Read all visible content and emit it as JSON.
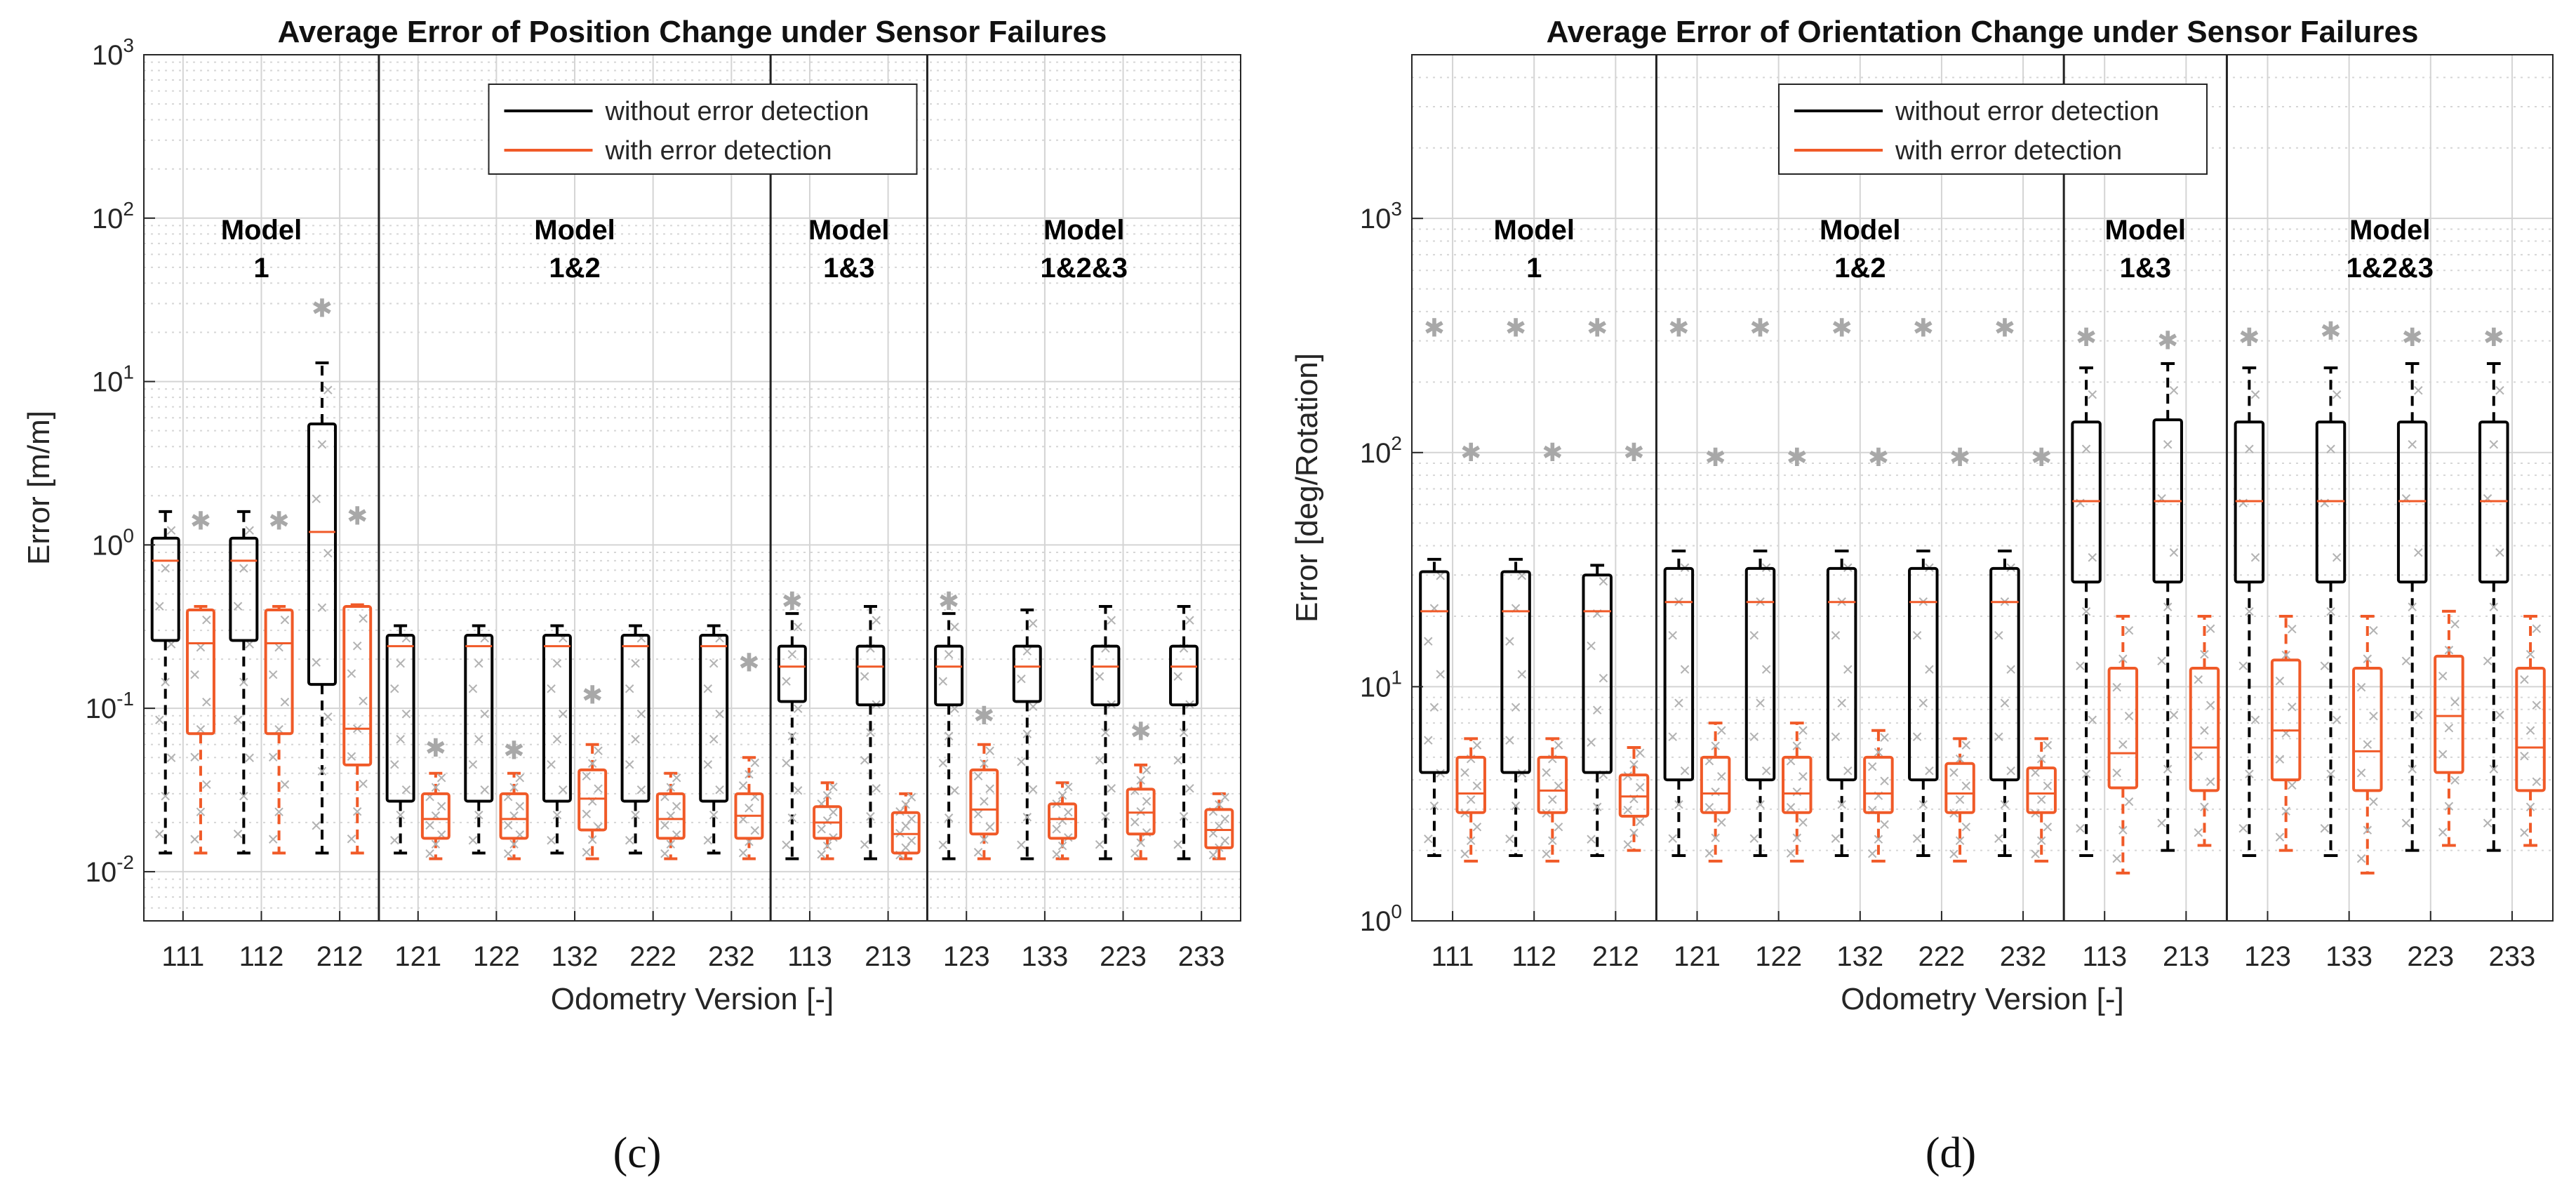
{
  "captions": [
    "(c)",
    "(d)"
  ],
  "chart_data": [
    {
      "type": "box",
      "title": "Average Error of Position Change under Sensor Failures",
      "xlabel": "Odometry Version [-]",
      "ylabel": "Error [m/m]",
      "yscale": "log",
      "ylim": [
        0.005,
        1000
      ],
      "yticks": [
        {
          "value": 0.01,
          "base": "10",
          "exp": "-2"
        },
        {
          "value": 0.1,
          "base": "10",
          "exp": "-1"
        },
        {
          "value": 1,
          "base": "10",
          "exp": "0"
        },
        {
          "value": 10,
          "base": "10",
          "exp": "1"
        },
        {
          "value": 100,
          "base": "10",
          "exp": "2"
        },
        {
          "value": 1000,
          "base": "10",
          "exp": "3"
        }
      ],
      "grid": true,
      "legend": {
        "position": "top-center",
        "entries": [
          {
            "label": "without error detection",
            "color": "#000000"
          },
          {
            "label": "with error detection",
            "color": "#f05a28"
          }
        ]
      },
      "groups": [
        {
          "line1": "Model",
          "line2": "1",
          "span": [
            0,
            2
          ]
        },
        {
          "line1": "Model",
          "line2": "1&2",
          "span": [
            3,
            7
          ]
        },
        {
          "line1": "Model",
          "line2": "1&3",
          "span": [
            8,
            9
          ]
        },
        {
          "line1": "Model",
          "line2": "1&2&3",
          "span": [
            10,
            13
          ]
        }
      ],
      "categories": [
        "111",
        "112",
        "212",
        "121",
        "122",
        "132",
        "222",
        "232",
        "113",
        "213",
        "123",
        "133",
        "223",
        "233"
      ],
      "series": [
        {
          "name": "without error detection",
          "color": "#000000",
          "boxes": [
            {
              "wlo": 0.013,
              "q1": 0.26,
              "med": 0.8,
              "q3": 1.1,
              "whi": 1.6,
              "outliers": []
            },
            {
              "wlo": 0.013,
              "q1": 0.26,
              "med": 0.8,
              "q3": 1.1,
              "whi": 1.6,
              "outliers": []
            },
            {
              "wlo": 0.013,
              "q1": 0.14,
              "med": 1.2,
              "q3": 5.5,
              "whi": 13,
              "outliers": [
                28
              ]
            },
            {
              "wlo": 0.013,
              "q1": 0.027,
              "med": 0.24,
              "q3": 0.28,
              "whi": 0.32,
              "outliers": []
            },
            {
              "wlo": 0.013,
              "q1": 0.027,
              "med": 0.24,
              "q3": 0.28,
              "whi": 0.32,
              "outliers": []
            },
            {
              "wlo": 0.013,
              "q1": 0.027,
              "med": 0.24,
              "q3": 0.28,
              "whi": 0.32,
              "outliers": []
            },
            {
              "wlo": 0.013,
              "q1": 0.027,
              "med": 0.24,
              "q3": 0.28,
              "whi": 0.32,
              "outliers": []
            },
            {
              "wlo": 0.013,
              "q1": 0.027,
              "med": 0.24,
              "q3": 0.28,
              "whi": 0.32,
              "outliers": []
            },
            {
              "wlo": 0.012,
              "q1": 0.11,
              "med": 0.18,
              "q3": 0.24,
              "whi": 0.38,
              "outliers": [
                0.45
              ]
            },
            {
              "wlo": 0.012,
              "q1": 0.105,
              "med": 0.18,
              "q3": 0.24,
              "whi": 0.42,
              "outliers": []
            },
            {
              "wlo": 0.012,
              "q1": 0.105,
              "med": 0.18,
              "q3": 0.24,
              "whi": 0.38,
              "outliers": [
                0.45
              ]
            },
            {
              "wlo": 0.012,
              "q1": 0.11,
              "med": 0.18,
              "q3": 0.24,
              "whi": 0.4,
              "outliers": []
            },
            {
              "wlo": 0.012,
              "q1": 0.105,
              "med": 0.18,
              "q3": 0.24,
              "whi": 0.42,
              "outliers": []
            },
            {
              "wlo": 0.012,
              "q1": 0.105,
              "med": 0.18,
              "q3": 0.24,
              "whi": 0.42,
              "outliers": []
            }
          ]
        },
        {
          "name": "with error detection",
          "color": "#f05a28",
          "boxes": [
            {
              "wlo": 0.013,
              "q1": 0.07,
              "med": 0.25,
              "q3": 0.4,
              "whi": 0.42,
              "outliers": [
                1.4
              ]
            },
            {
              "wlo": 0.013,
              "q1": 0.07,
              "med": 0.25,
              "q3": 0.4,
              "whi": 0.42,
              "outliers": [
                1.4
              ]
            },
            {
              "wlo": 0.013,
              "q1": 0.045,
              "med": 0.075,
              "q3": 0.42,
              "whi": 0.43,
              "outliers": [
                1.5
              ]
            },
            {
              "wlo": 0.012,
              "q1": 0.016,
              "med": 0.021,
              "q3": 0.03,
              "whi": 0.04,
              "outliers": [
                0.057
              ]
            },
            {
              "wlo": 0.012,
              "q1": 0.016,
              "med": 0.021,
              "q3": 0.03,
              "whi": 0.04,
              "outliers": [
                0.055
              ]
            },
            {
              "wlo": 0.012,
              "q1": 0.018,
              "med": 0.028,
              "q3": 0.042,
              "whi": 0.06,
              "outliers": [
                0.12
              ]
            },
            {
              "wlo": 0.012,
              "q1": 0.016,
              "med": 0.021,
              "q3": 0.03,
              "whi": 0.04,
              "outliers": []
            },
            {
              "wlo": 0.012,
              "q1": 0.016,
              "med": 0.022,
              "q3": 0.03,
              "whi": 0.05,
              "outliers": [
                0.19
              ]
            },
            {
              "wlo": 0.012,
              "q1": 0.016,
              "med": 0.02,
              "q3": 0.025,
              "whi": 0.035,
              "outliers": []
            },
            {
              "wlo": 0.012,
              "q1": 0.013,
              "med": 0.017,
              "q3": 0.023,
              "whi": 0.03,
              "outliers": []
            },
            {
              "wlo": 0.012,
              "q1": 0.017,
              "med": 0.024,
              "q3": 0.042,
              "whi": 0.06,
              "outliers": [
                0.09
              ]
            },
            {
              "wlo": 0.012,
              "q1": 0.016,
              "med": 0.021,
              "q3": 0.026,
              "whi": 0.035,
              "outliers": []
            },
            {
              "wlo": 0.012,
              "q1": 0.017,
              "med": 0.023,
              "q3": 0.032,
              "whi": 0.045,
              "outliers": [
                0.072
              ]
            },
            {
              "wlo": 0.012,
              "q1": 0.014,
              "med": 0.018,
              "q3": 0.024,
              "whi": 0.03,
              "outliers": []
            }
          ]
        }
      ]
    },
    {
      "type": "box",
      "title": "Average Error of Orientation Change under Sensor Failures",
      "xlabel": "Odometry Version [-]",
      "ylabel": "Error [deg/Rotation]",
      "yscale": "log",
      "ylim": [
        1,
        5000
      ],
      "yticks": [
        {
          "value": 1,
          "base": "10",
          "exp": "0"
        },
        {
          "value": 10,
          "base": "10",
          "exp": "1"
        },
        {
          "value": 100,
          "base": "10",
          "exp": "2"
        },
        {
          "value": 1000,
          "base": "10",
          "exp": "3"
        }
      ],
      "grid": true,
      "legend": {
        "position": "top-center",
        "entries": [
          {
            "label": "without error detection",
            "color": "#000000"
          },
          {
            "label": "with error detection",
            "color": "#f05a28"
          }
        ]
      },
      "groups": [
        {
          "line1": "Model",
          "line2": "1",
          "span": [
            0,
            2
          ]
        },
        {
          "line1": "Model",
          "line2": "1&2",
          "span": [
            3,
            7
          ]
        },
        {
          "line1": "Model",
          "line2": "1&3",
          "span": [
            8,
            9
          ]
        },
        {
          "line1": "Model",
          "line2": "1&2&3",
          "span": [
            10,
            13
          ]
        }
      ],
      "categories": [
        "111",
        "112",
        "212",
        "121",
        "122",
        "132",
        "222",
        "232",
        "113",
        "213",
        "123",
        "133",
        "223",
        "233"
      ],
      "series": [
        {
          "name": "without error detection",
          "color": "#000000",
          "boxes": [
            {
              "wlo": 1.9,
              "q1": 4.3,
              "med": 21,
              "q3": 31,
              "whi": 35,
              "outliers": [
                340
              ]
            },
            {
              "wlo": 1.9,
              "q1": 4.3,
              "med": 21,
              "q3": 31,
              "whi": 35,
              "outliers": [
                340
              ]
            },
            {
              "wlo": 1.9,
              "q1": 4.3,
              "med": 21,
              "q3": 30,
              "whi": 33,
              "outliers": [
                340
              ]
            },
            {
              "wlo": 1.9,
              "q1": 4.0,
              "med": 23,
              "q3": 32,
              "whi": 38,
              "outliers": [
                340
              ]
            },
            {
              "wlo": 1.9,
              "q1": 4.0,
              "med": 23,
              "q3": 32,
              "whi": 38,
              "outliers": [
                340
              ]
            },
            {
              "wlo": 1.9,
              "q1": 4.0,
              "med": 23,
              "q3": 32,
              "whi": 38,
              "outliers": [
                340
              ]
            },
            {
              "wlo": 1.9,
              "q1": 4.0,
              "med": 23,
              "q3": 32,
              "whi": 38,
              "outliers": [
                340
              ]
            },
            {
              "wlo": 1.9,
              "q1": 4.0,
              "med": 23,
              "q3": 32,
              "whi": 38,
              "outliers": [
                340
              ]
            },
            {
              "wlo": 1.9,
              "q1": 28,
              "med": 62,
              "q3": 135,
              "whi": 230,
              "outliers": [
                310
              ]
            },
            {
              "wlo": 2.0,
              "q1": 28,
              "med": 62,
              "q3": 138,
              "whi": 240,
              "outliers": [
                300
              ]
            },
            {
              "wlo": 1.9,
              "q1": 28,
              "med": 62,
              "q3": 135,
              "whi": 230,
              "outliers": [
                310
              ]
            },
            {
              "wlo": 1.9,
              "q1": 28,
              "med": 62,
              "q3": 135,
              "whi": 230,
              "outliers": [
                330
              ]
            },
            {
              "wlo": 2.0,
              "q1": 28,
              "med": 62,
              "q3": 135,
              "whi": 240,
              "outliers": [
                310
              ]
            },
            {
              "wlo": 2.0,
              "q1": 28,
              "med": 62,
              "q3": 135,
              "whi": 240,
              "outliers": [
                310
              ]
            }
          ]
        },
        {
          "name": "with error detection",
          "color": "#f05a28",
          "boxes": [
            {
              "wlo": 1.8,
              "q1": 2.9,
              "med": 3.5,
              "q3": 5.0,
              "whi": 6.0,
              "outliers": [
                100
              ]
            },
            {
              "wlo": 1.8,
              "q1": 2.9,
              "med": 3.6,
              "q3": 5.0,
              "whi": 6.0,
              "outliers": [
                100
              ]
            },
            {
              "wlo": 2.0,
              "q1": 2.8,
              "med": 3.4,
              "q3": 4.2,
              "whi": 5.5,
              "outliers": [
                100
              ]
            },
            {
              "wlo": 1.8,
              "q1": 2.9,
              "med": 3.5,
              "q3": 5.0,
              "whi": 7.0,
              "outliers": [
                95
              ]
            },
            {
              "wlo": 1.8,
              "q1": 2.9,
              "med": 3.5,
              "q3": 5.0,
              "whi": 7.0,
              "outliers": [
                95
              ]
            },
            {
              "wlo": 1.8,
              "q1": 2.9,
              "med": 3.5,
              "q3": 5.0,
              "whi": 6.5,
              "outliers": [
                95
              ]
            },
            {
              "wlo": 1.8,
              "q1": 2.9,
              "med": 3.5,
              "q3": 4.7,
              "whi": 6.0,
              "outliers": [
                95
              ]
            },
            {
              "wlo": 1.8,
              "q1": 2.9,
              "med": 3.5,
              "q3": 4.5,
              "whi": 6.0,
              "outliers": [
                95
              ]
            },
            {
              "wlo": 1.6,
              "q1": 3.7,
              "med": 5.2,
              "q3": 12,
              "whi": 20,
              "outliers": []
            },
            {
              "wlo": 2.1,
              "q1": 3.6,
              "med": 5.5,
              "q3": 12,
              "whi": 20,
              "outliers": []
            },
            {
              "wlo": 2.0,
              "q1": 4.0,
              "med": 6.5,
              "q3": 13,
              "whi": 20,
              "outliers": []
            },
            {
              "wlo": 1.6,
              "q1": 3.6,
              "med": 5.3,
              "q3": 12,
              "whi": 20,
              "outliers": []
            },
            {
              "wlo": 2.1,
              "q1": 4.3,
              "med": 7.5,
              "q3": 13.5,
              "whi": 21,
              "outliers": []
            },
            {
              "wlo": 2.1,
              "q1": 3.6,
              "med": 5.5,
              "q3": 12,
              "whi": 20,
              "outliers": []
            }
          ]
        }
      ]
    }
  ]
}
